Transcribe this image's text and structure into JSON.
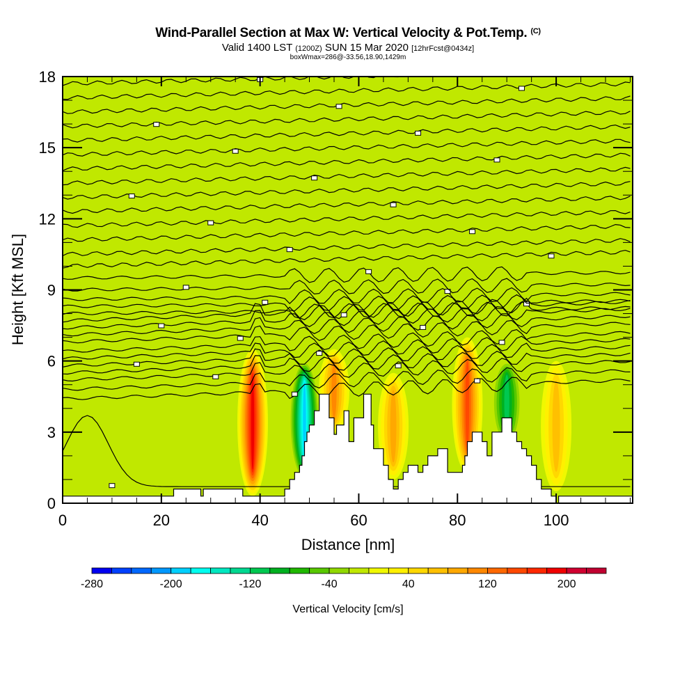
{
  "title": {
    "main": "Wind-Parallel Section at Max W: Vertical Velocity & Pot.Temp.",
    "copyright": "(C)",
    "valid_prefix": "Valid 1400 LST",
    "valid_utc": "(1200Z)",
    "valid_date": "SUN 15 Mar 2020",
    "forecast": "[12hrFcst@0434z]",
    "boxwmax": "boxWmax=286@-33.56,18.90,1429m"
  },
  "chart_data": {
    "type": "heatmap",
    "title": "Wind-Parallel Section at Max W: Vertical Velocity & Pot.Temp.",
    "xlabel": "Distance [nm]",
    "ylabel": "Height [Kft MSL]",
    "xlim": [
      0,
      115.5
    ],
    "ylim": [
      0,
      18
    ],
    "x_ticks": [
      0,
      20,
      40,
      60,
      80,
      100
    ],
    "x_tick_labels": [
      "0",
      "20",
      "40",
      "60",
      "80",
      "100"
    ],
    "x_minor_step": 5,
    "y_ticks": [
      0,
      3,
      6,
      9,
      12,
      15,
      18
    ],
    "y_tick_labels": [
      "0",
      "3",
      "6",
      "9",
      "12",
      "15",
      "18"
    ],
    "y_minor_step": 1,
    "background_value": -10,
    "colorbar": {
      "label": "Vertical Velocity [cm/s]",
      "min": -280,
      "max": 240,
      "step": 20,
      "tick_values": [
        -280,
        -200,
        -120,
        -40,
        40,
        120,
        200
      ],
      "tick_labels": [
        "-280",
        "-200",
        "-120",
        "-40",
        "40",
        "120",
        "200"
      ],
      "colors": [
        "#0000f0",
        "#0040ff",
        "#0068ff",
        "#0098ff",
        "#00d0ff",
        "#00fff0",
        "#00e8c0",
        "#00d890",
        "#00c850",
        "#00b020",
        "#20b800",
        "#58c800",
        "#90d800",
        "#c0e800",
        "#f0f800",
        "#fff000",
        "#ffd800",
        "#ffc000",
        "#ffa800",
        "#ff8800",
        "#ff6800",
        "#ff4800",
        "#ff2800",
        "#f00000",
        "#d00030",
        "#c00030"
      ]
    },
    "features": [
      {
        "name": "updraft-38nm",
        "x": 38.5,
        "y_range": [
          0.3,
          6.5
        ],
        "peak": 200
      },
      {
        "name": "downdraft-lee-48nm",
        "x": 49,
        "y_range": [
          1,
          6
        ],
        "peak": -200
      },
      {
        "name": "updraft-55nm",
        "x": 55,
        "y_range": [
          3,
          6.5
        ],
        "peak": 120
      },
      {
        "name": "updraft-67nm",
        "x": 67,
        "y_range": [
          1,
          5.5
        ],
        "peak": 100
      },
      {
        "name": "updraft-82nm",
        "x": 82,
        "y_range": [
          1.3,
          7
        ],
        "peak": 160
      },
      {
        "name": "downdraft-90nm",
        "x": 90,
        "y_range": [
          2.5,
          6
        ],
        "peak": -120
      },
      {
        "name": "updraft-100nm",
        "x": 100,
        "y_range": [
          0.5,
          6
        ],
        "peak": 80
      }
    ],
    "terrain_kft": [
      [
        0,
        0.3
      ],
      [
        22.5,
        0.3
      ],
      [
        22.5,
        0.6
      ],
      [
        28,
        0.6
      ],
      [
        28,
        0.3
      ],
      [
        28.5,
        0.3
      ],
      [
        28.5,
        0.6
      ],
      [
        36.5,
        0.6
      ],
      [
        36.5,
        0.3
      ],
      [
        45,
        0.3
      ],
      [
        45,
        0.6
      ],
      [
        46,
        0.6
      ],
      [
        46,
        1
      ],
      [
        47,
        1
      ],
      [
        47,
        1.3
      ],
      [
        48,
        1.3
      ],
      [
        48,
        1.6
      ],
      [
        48.5,
        1.6
      ],
      [
        48.5,
        2
      ],
      [
        49,
        2
      ],
      [
        49,
        2.6
      ],
      [
        49.5,
        2.6
      ],
      [
        49.5,
        3
      ],
      [
        50,
        3
      ],
      [
        50,
        3.3
      ],
      [
        51,
        3.3
      ],
      [
        51,
        3.9
      ],
      [
        52,
        3.9
      ],
      [
        52,
        4.6
      ],
      [
        54,
        4.6
      ],
      [
        54,
        3.6
      ],
      [
        55,
        3.6
      ],
      [
        55,
        2.9
      ],
      [
        55.5,
        2.9
      ],
      [
        55.5,
        3.3
      ],
      [
        57,
        3.3
      ],
      [
        57,
        3.9
      ],
      [
        58,
        3.9
      ],
      [
        58,
        2.6
      ],
      [
        59,
        2.6
      ],
      [
        59,
        3.6
      ],
      [
        61,
        3.6
      ],
      [
        61,
        4.6
      ],
      [
        62.5,
        4.6
      ],
      [
        62.5,
        3.3
      ],
      [
        63,
        3.3
      ],
      [
        63,
        2.3
      ],
      [
        65,
        2.3
      ],
      [
        65,
        1.6
      ],
      [
        66,
        1.6
      ],
      [
        66,
        1
      ],
      [
        67,
        1
      ],
      [
        67,
        0.6
      ],
      [
        68,
        0.6
      ],
      [
        68,
        1
      ],
      [
        69,
        1
      ],
      [
        69,
        1.3
      ],
      [
        70,
        1.3
      ],
      [
        70,
        1.6
      ],
      [
        72,
        1.6
      ],
      [
        72,
        1.3
      ],
      [
        73,
        1.3
      ],
      [
        73,
        1.6
      ],
      [
        74,
        1.6
      ],
      [
        74,
        2
      ],
      [
        76,
        2
      ],
      [
        76,
        2.3
      ],
      [
        78,
        2.3
      ],
      [
        78,
        1.3
      ],
      [
        81,
        1.3
      ],
      [
        81,
        1.6
      ],
      [
        81.5,
        1.6
      ],
      [
        81.5,
        2
      ],
      [
        82,
        2
      ],
      [
        82,
        2.6
      ],
      [
        83,
        2.6
      ],
      [
        83,
        3
      ],
      [
        85,
        3
      ],
      [
        85,
        2.6
      ],
      [
        86,
        2.6
      ],
      [
        86,
        2
      ],
      [
        87,
        2
      ],
      [
        87,
        3
      ],
      [
        89,
        3
      ],
      [
        89,
        3.6
      ],
      [
        91,
        3.6
      ],
      [
        91,
        3
      ],
      [
        92,
        3
      ],
      [
        92,
        2.6
      ],
      [
        93,
        2.6
      ],
      [
        93,
        2.3
      ],
      [
        94,
        2.3
      ],
      [
        94,
        2
      ],
      [
        95,
        2
      ],
      [
        95,
        1.6
      ],
      [
        96,
        1.6
      ],
      [
        96,
        1
      ],
      [
        97,
        1
      ],
      [
        97,
        0.6
      ],
      [
        99,
        0.6
      ],
      [
        99,
        0.3
      ],
      [
        100,
        0.3
      ],
      [
        100,
        0
      ],
      [
        100.5,
        0
      ],
      [
        100.5,
        0.3
      ],
      [
        115.5,
        0.3
      ]
    ],
    "isentropes_kft": [
      0.7,
      4.4,
      4.8,
      5.2,
      5.5,
      5.8,
      6.1,
      6.4,
      6.8,
      7.1,
      7.4,
      7.7,
      8.0,
      8.3,
      8.6,
      9.0,
      9.5,
      10.0,
      10.5,
      11.1,
      11.7,
      12.3,
      12.9,
      13.5,
      14.1,
      14.7,
      15.3,
      15.9,
      16.5,
      17.1,
      17.7
    ]
  }
}
